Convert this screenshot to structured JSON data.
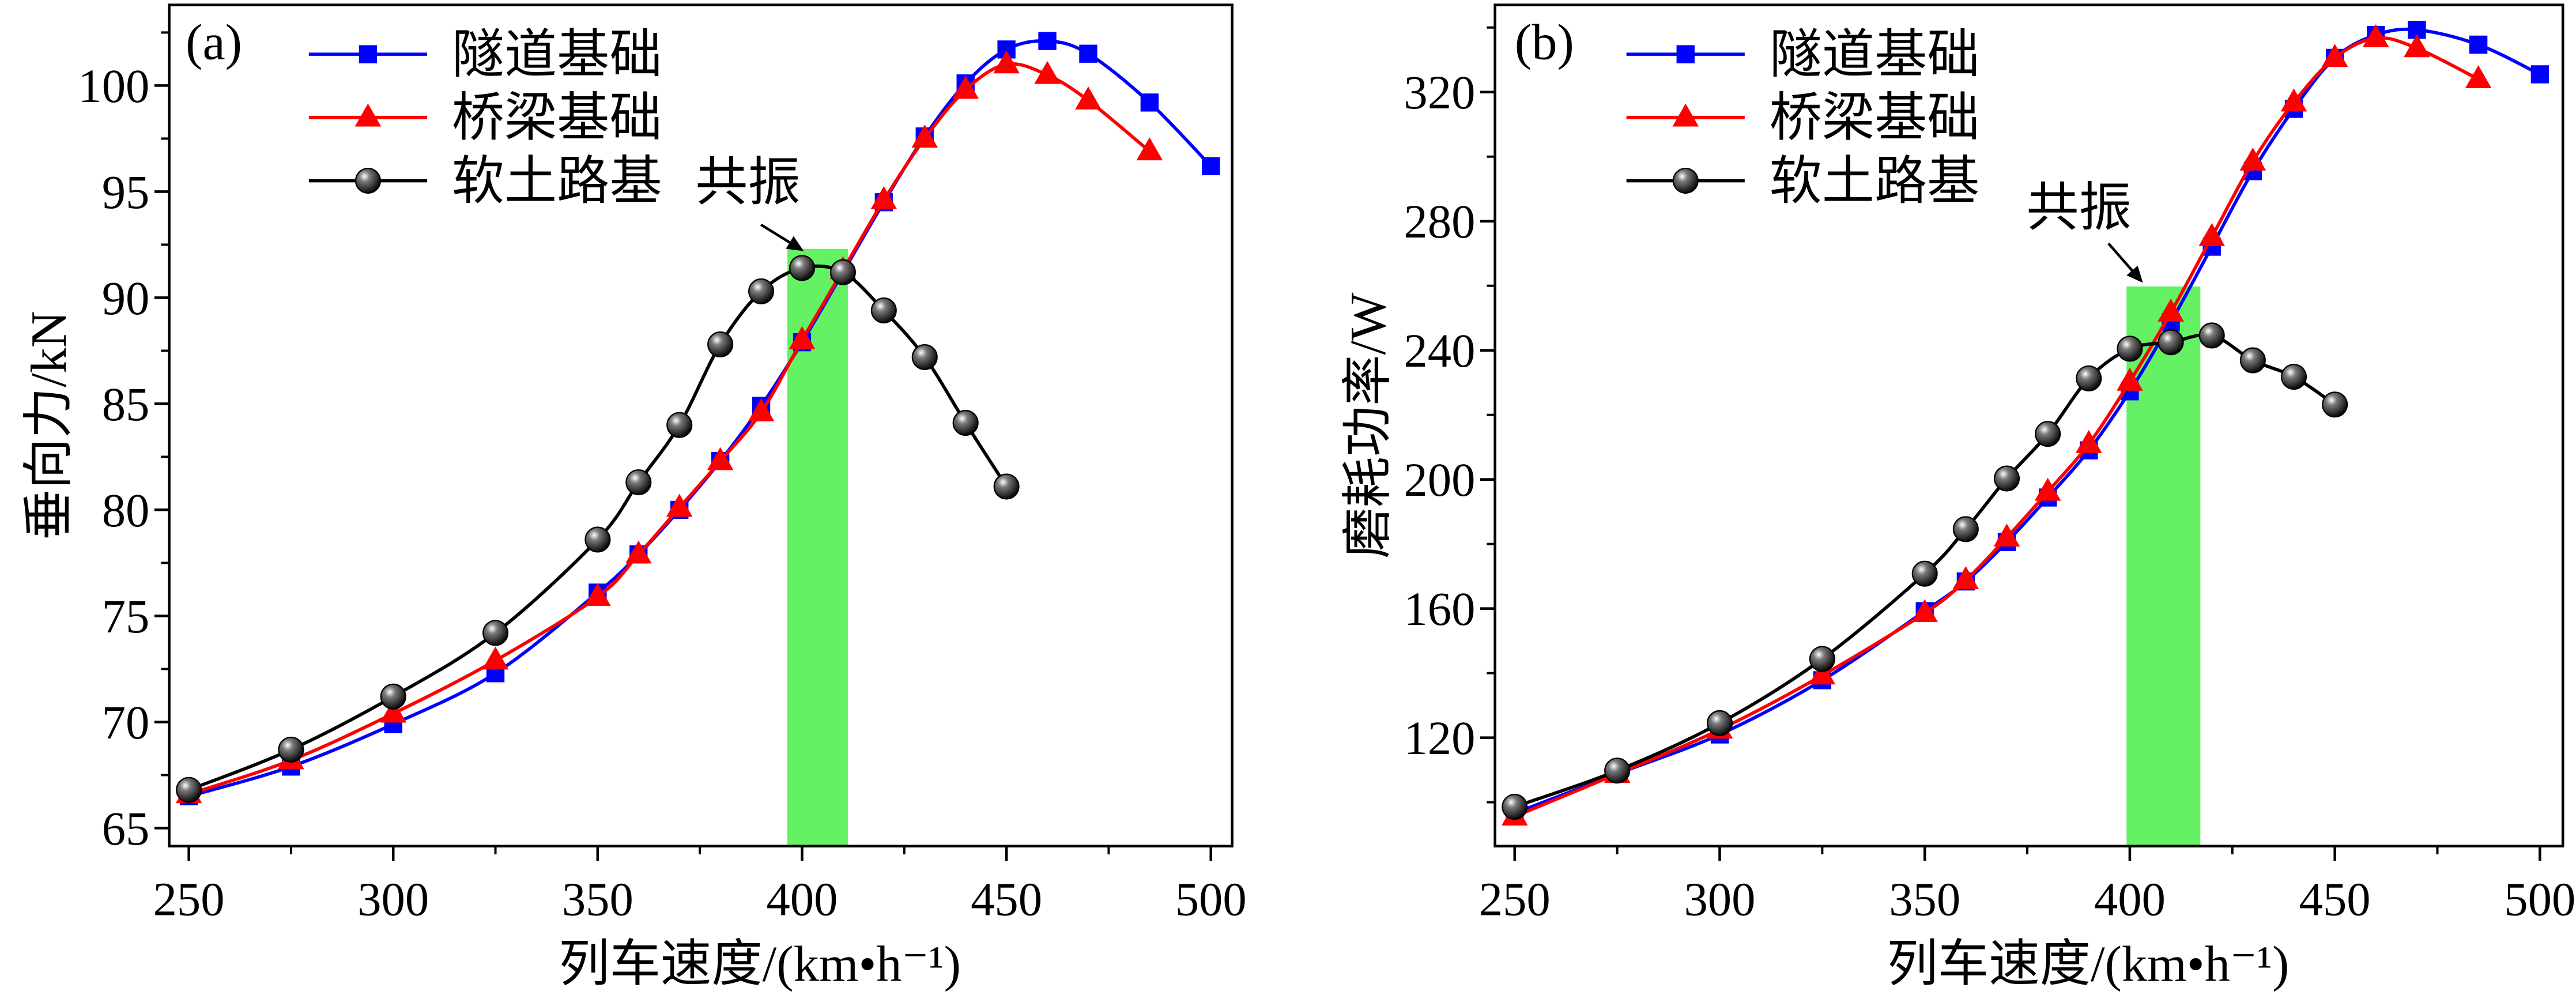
{
  "chart_data": [
    {
      "type": "line",
      "panel_label": "(a)",
      "xlabel": "列车速度/(km•h⁻¹)",
      "ylabel": "垂向力/kN",
      "xlim": [
        245.2,
        505.2
      ],
      "ylim": [
        64.15,
        103.8
      ],
      "xticks": [
        250,
        300,
        350,
        400,
        450,
        500
      ],
      "yticks": [
        65,
        70,
        75,
        80,
        85,
        90,
        95,
        100
      ],
      "legend": "top-left",
      "series": [
        {
          "name": "隧道基础",
          "color": "#0000FF",
          "x": [
            250,
            275,
            300,
            325,
            350,
            360,
            370,
            380,
            390,
            400,
            410,
            420,
            430,
            440,
            450,
            460,
            470,
            485,
            500
          ],
          "y": [
            66.5,
            67.9,
            69.9,
            72.3,
            76.1,
            77.9,
            80.0,
            82.3,
            84.9,
            87.9,
            91.2,
            94.5,
            97.6,
            100.1,
            101.7,
            102.1,
            101.5,
            99.2,
            96.2
          ]
        },
        {
          "name": "桥梁基础",
          "color": "#FF0000",
          "x": [
            250,
            275,
            300,
            325,
            350,
            360,
            370,
            380,
            390,
            400,
            410,
            420,
            430,
            440,
            450,
            460,
            470,
            485
          ],
          "y": [
            66.6,
            68.2,
            70.4,
            72.9,
            75.9,
            77.9,
            80.1,
            82.3,
            84.6,
            88.0,
            91.3,
            94.6,
            97.5,
            99.8,
            101.0,
            100.5,
            99.3,
            96.9
          ]
        },
        {
          "name": "软土路基",
          "color": "#000000",
          "x": [
            250,
            275,
            300,
            325,
            350,
            360,
            370,
            380,
            390,
            400,
            410,
            420,
            430,
            440,
            450
          ],
          "y": [
            66.8,
            68.7,
            71.2,
            74.2,
            78.6,
            81.3,
            84.0,
            87.8,
            90.3,
            91.4,
            91.2,
            89.4,
            87.2,
            84.1,
            81.1
          ]
        }
      ],
      "highlight_band": {
        "x": [
          396.4,
          411.2
        ],
        "ymax": 92.3,
        "color": "#57F157"
      },
      "annotation": {
        "text": "共振",
        "x": 400.4,
        "y": 92.2
      }
    },
    {
      "type": "line",
      "panel_label": "(b)",
      "xlabel": "列车速度/(km•h⁻¹)",
      "ylabel": "磨耗功率/W",
      "xlim": [
        245.2,
        505.6
      ],
      "ylim": [
        86.4,
        347.0
      ],
      "xticks": [
        250,
        300,
        350,
        400,
        450,
        500
      ],
      "yticks": [
        120,
        160,
        200,
        240,
        280,
        320
      ],
      "legend": "top-left",
      "series": [
        {
          "name": "隧道基础",
          "color": "#0000FF",
          "x": [
            250,
            275,
            300,
            325,
            350,
            360,
            370,
            380,
            390,
            400,
            410,
            420,
            430,
            440,
            450,
            460,
            470,
            485,
            500
          ],
          "y": [
            96.6,
            108.8,
            121.0,
            137.8,
            159.2,
            168.4,
            180.6,
            194.4,
            209.0,
            227.3,
            248.7,
            272.1,
            295.5,
            314.8,
            330.6,
            337.7,
            339.3,
            334.7,
            325.5
          ]
        },
        {
          "name": "桥梁基础",
          "color": "#FF0000",
          "x": [
            250,
            275,
            300,
            325,
            350,
            360,
            370,
            380,
            390,
            400,
            410,
            420,
            430,
            440,
            450,
            460,
            470,
            485
          ],
          "y": [
            95.6,
            108.8,
            122.5,
            139.3,
            158.6,
            168.8,
            182.0,
            196.2,
            211.0,
            230.3,
            251.7,
            275.1,
            298.5,
            316.8,
            330.6,
            336.7,
            333.6,
            324.0
          ]
        },
        {
          "name": "软土路基",
          "color": "#000000",
          "x": [
            250,
            275,
            300,
            325,
            350,
            360,
            370,
            380,
            390,
            400,
            410,
            420,
            430,
            440,
            450
          ],
          "y": [
            98.6,
            109.8,
            124.5,
            144.4,
            170.8,
            184.6,
            200.3,
            214.1,
            231.3,
            240.5,
            242.5,
            244.6,
            236.9,
            231.8,
            223.2
          ]
        }
      ],
      "highlight_band": {
        "x": [
          399.2,
          417.2
        ],
        "ymax": 259.8,
        "color": "#57F157"
      },
      "annotation": {
        "text": "共振",
        "x": 403.2,
        "y": 260.9
      }
    }
  ]
}
